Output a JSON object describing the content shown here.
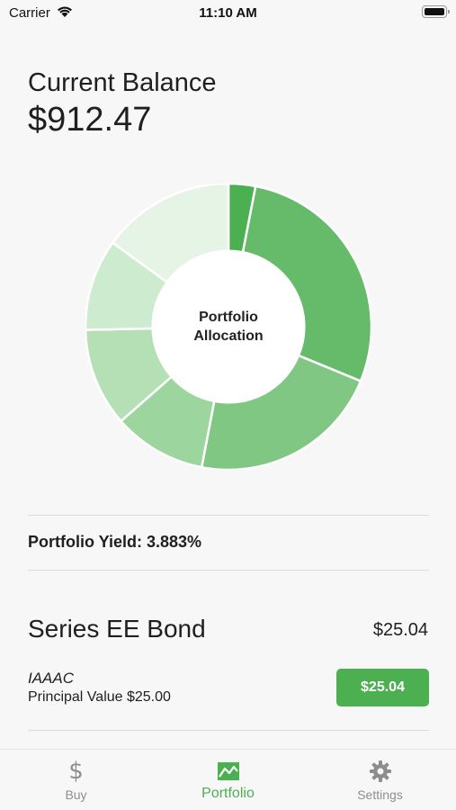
{
  "status_bar": {
    "carrier": "Carrier",
    "time": "11:10 AM"
  },
  "balance": {
    "label": "Current Balance",
    "value": "$912.47"
  },
  "chart_data": {
    "type": "pie",
    "title": "Portfolio Allocation",
    "title_lines": [
      "Portfolio",
      "Allocation"
    ],
    "values": [
      2.74,
      25.35,
      19.61,
      9.48,
      10.0,
      9.3,
      13.52
    ],
    "colors": [
      "#4caf50",
      "#66bb6a",
      "#81c784",
      "#9dd59f",
      "#b5e0b6",
      "#cdebce",
      "#e6f4e6"
    ],
    "inner_radius_ratio": 0.53
  },
  "portfolio_yield": "Portfolio Yield: 3.883%",
  "bond": {
    "title": "Series EE Bond",
    "amount": "$25.04",
    "code": "IAAAC",
    "principal": "Principal Value $25.00",
    "button_label": "$25.04"
  },
  "tab_bar": {
    "tabs": [
      {
        "label": "Buy",
        "icon": "dollar-icon",
        "active": false
      },
      {
        "label": "Portfolio",
        "icon": "chart-icon",
        "active": true
      },
      {
        "label": "Settings",
        "icon": "gear-icon",
        "active": false
      }
    ]
  },
  "colors": {
    "accent": "#4caf50",
    "inactive": "#8e8e8e"
  }
}
